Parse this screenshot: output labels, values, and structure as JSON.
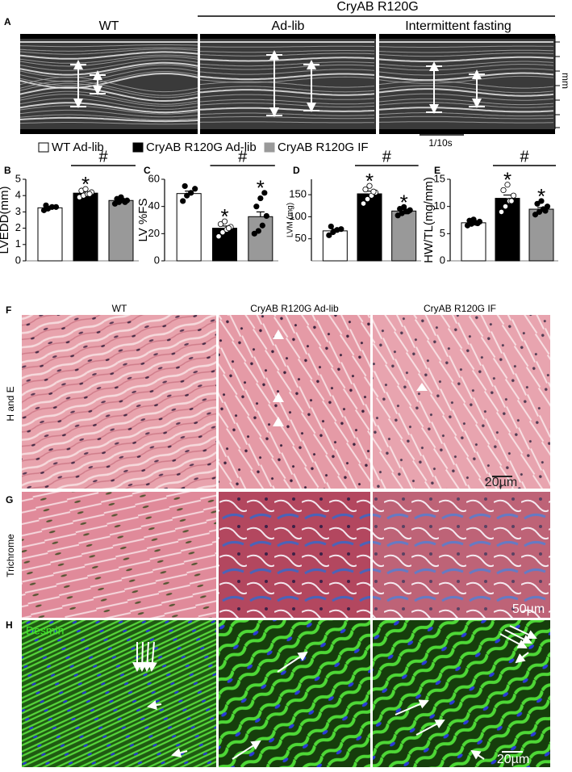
{
  "panel_a": {
    "label": "A",
    "wt": "WT",
    "group": "CryAB R120G",
    "ad_lib": "Ad-lib",
    "fasting": "Intermittent fasting",
    "unit": "mm",
    "time_scale": "1/10s"
  },
  "legend": [
    {
      "name": "WT Ad-lib",
      "color": "#ffffff"
    },
    {
      "name": "CryAB R120G Ad-lib",
      "color": "#000000"
    },
    {
      "name": "CryAB R120G IF",
      "color": "#999999"
    }
  ],
  "chart_data": [
    {
      "type": "bar",
      "panel": "B",
      "ylabel": "LVEDD(mm)",
      "categories": [
        null,
        null,
        null
      ],
      "colors": [
        "#ffffff",
        "#000000",
        "#999999"
      ],
      "values": [
        3.25,
        4.15,
        3.7
      ],
      "errors": [
        0.07,
        0.08,
        0.06
      ],
      "points": [
        [
          3.1,
          3.2,
          3.3,
          3.3,
          3.4
        ],
        [
          3.9,
          4.0,
          4.1,
          4.2,
          4.3,
          4.4,
          4.1
        ],
        [
          3.5,
          3.6,
          3.7,
          3.7,
          3.8,
          3.9,
          3.6
        ]
      ],
      "ylim": [
        0,
        5
      ],
      "yticks": [
        0,
        1,
        2,
        3,
        4,
        5
      ],
      "significance": [
        null,
        "*",
        null
      ],
      "bracket_label": "#"
    },
    {
      "type": "bar",
      "panel": "C",
      "ylabel": "LV %FS",
      "categories": [
        null,
        null,
        null
      ],
      "colors": [
        "#ffffff",
        "#000000",
        "#999999"
      ],
      "values": [
        49.5,
        24,
        32.5
      ],
      "errors": [
        1.8,
        1.6,
        3.5
      ],
      "points": [
        [
          44,
          48,
          50,
          53,
          55
        ],
        [
          18,
          21,
          23,
          25,
          27,
          29,
          24
        ],
        [
          20,
          22,
          26,
          33,
          40,
          46,
          50
        ]
      ],
      "ylim": [
        0,
        60
      ],
      "yticks": [
        0,
        20,
        40,
        60
      ],
      "significance": [
        null,
        "*",
        "*"
      ],
      "bracket_label": "#"
    },
    {
      "type": "bar",
      "panel": "D",
      "ylabel": "LVM (mg)",
      "categories": [
        null,
        null,
        null
      ],
      "colors": [
        "#ffffff",
        "#000000",
        "#999999"
      ],
      "values": [
        68,
        152,
        113
      ],
      "errors": [
        4,
        6,
        3
      ],
      "points": [
        [
          58,
          65,
          70,
          72,
          78
        ],
        [
          130,
          140,
          148,
          155,
          162,
          170,
          157
        ],
        [
          103,
          108,
          112,
          115,
          118,
          122,
          112
        ]
      ],
      "ylim": [
        0,
        185
      ],
      "yticks": [
        50,
        100,
        150
      ],
      "significance": [
        null,
        "*",
        "*"
      ],
      "bracket_label": "#"
    },
    {
      "type": "bar",
      "panel": "E",
      "ylabel": "HW/TL(mg/mm)",
      "categories": [
        null,
        null,
        null
      ],
      "colors": [
        "#ffffff",
        "#000000",
        "#999999"
      ],
      "values": [
        7,
        11.5,
        9.5
      ],
      "errors": [
        0.2,
        0.6,
        0.3
      ],
      "points": [
        [
          6.5,
          6.8,
          7,
          7.2,
          7.4,
          7.6,
          6.9
        ],
        [
          9,
          10,
          11,
          12,
          13,
          14,
          11
        ],
        [
          8.5,
          9,
          9.5,
          10,
          10.5,
          11,
          9.2
        ]
      ],
      "ylim": [
        0,
        15
      ],
      "yticks": [
        0,
        5,
        10,
        15
      ],
      "significance": [
        null,
        "*",
        "*"
      ],
      "bracket_label": "#"
    }
  ],
  "histology": {
    "columns": [
      "WT",
      "CryAB R120G Ad-lib",
      "CryAB R120G IF"
    ],
    "rows": [
      {
        "label": "F",
        "name": "H and E",
        "scale": "20µm"
      },
      {
        "label": "G",
        "name": "Trichrome",
        "scale": "50µm"
      },
      {
        "label": "H",
        "name": "Desmin",
        "scale": "20µm"
      }
    ]
  }
}
